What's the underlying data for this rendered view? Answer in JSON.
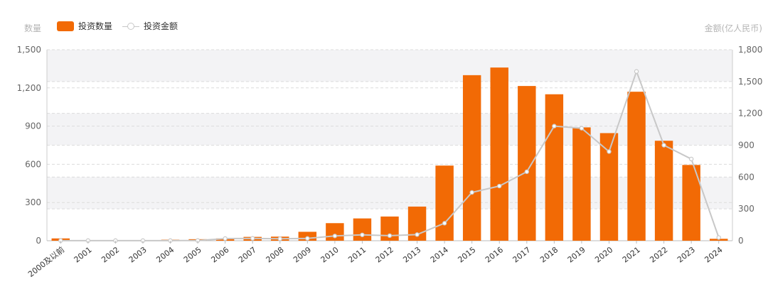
{
  "chart_data": {
    "type": "bar",
    "categories": [
      "2000及以前",
      "2001",
      "2002",
      "2003",
      "2004",
      "2005",
      "2006",
      "2007",
      "2008",
      "2009",
      "2010",
      "2011",
      "2012",
      "2013",
      "2014",
      "2015",
      "2016",
      "2017",
      "2018",
      "2019",
      "2020",
      "2021",
      "2022",
      "2023",
      "2024"
    ],
    "series": [
      {
        "name": "投资数量",
        "type": "bar",
        "axis": "left",
        "color": "#f26a05",
        "values": [
          18,
          3,
          4,
          5,
          8,
          12,
          18,
          30,
          32,
          70,
          138,
          175,
          190,
          268,
          590,
          1300,
          1360,
          1215,
          1150,
          890,
          845,
          1170,
          785,
          595,
          15
        ]
      },
      {
        "name": "投资金额",
        "type": "line",
        "axis": "right",
        "color": "#c8c8c8",
        "values": [
          1,
          1,
          1,
          1,
          1,
          2,
          20,
          22,
          18,
          22,
          45,
          55,
          48,
          58,
          165,
          455,
          515,
          650,
          1080,
          1060,
          840,
          1595,
          900,
          770,
          30
        ]
      }
    ],
    "y_left": {
      "label": "数量",
      "min": 0,
      "max": 1500,
      "ticks": [
        "0",
        "300",
        "600",
        "900",
        "1,200",
        "1,500"
      ]
    },
    "y_right": {
      "label": "金额(亿人民币)",
      "min": 0,
      "max": 1800,
      "ticks": [
        "0",
        "300",
        "600",
        "900",
        "1,200",
        "1,500",
        "1,800"
      ]
    },
    "grid": true,
    "legend": "top-left"
  }
}
